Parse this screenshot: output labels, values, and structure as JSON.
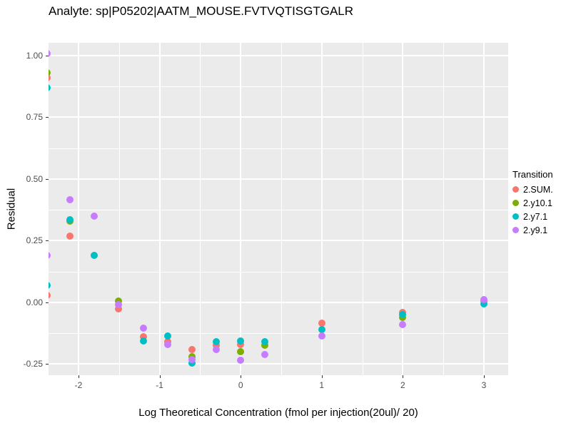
{
  "title": "Analyte: sp|P05202|AATM_MOUSE.FVTVQTISGTGALR",
  "chart_data": {
    "type": "scatter",
    "title": "Analyte: sp|P05202|AATM_MOUSE.FVTVQTISGTGALR",
    "xlabel": "Log Theoretical Concentration (fmol per injection(20ul)/ 20)",
    "ylabel": "Residual",
    "legend_title": "Transition",
    "legend_position": "right",
    "grid": "on",
    "panel_bg": "#EBEBEB",
    "grid_color": "#FFFFFF",
    "xlim": [
      -2.37,
      3.3
    ],
    "ylim": [
      -0.295,
      1.052
    ],
    "x_ticks": [
      {
        "value": -2,
        "label": "-2"
      },
      {
        "value": -1,
        "label": "-1"
      },
      {
        "value": 0,
        "label": "0"
      },
      {
        "value": 1,
        "label": "1"
      },
      {
        "value": 2,
        "label": "2"
      },
      {
        "value": 3,
        "label": "3"
      }
    ],
    "y_ticks": [
      {
        "value": 1.0,
        "label": "1.00"
      },
      {
        "value": 0.75,
        "label": "0.75"
      },
      {
        "value": 0.5,
        "label": "0.50"
      },
      {
        "value": 0.25,
        "label": "0.25"
      },
      {
        "value": 0.0,
        "label": "0.00"
      },
      {
        "value": -0.25,
        "label": "-0.25"
      }
    ],
    "x_minor_ticks": [
      -1.5,
      -0.5,
      0.5,
      1.5,
      2.5
    ],
    "y_minor_ticks": [
      0.875,
      0.625,
      0.375,
      0.125,
      -0.125
    ],
    "series": [
      {
        "name": "2.SUM.",
        "color": "#F8766D",
        "points": [
          [
            -2.39,
            0.91
          ],
          [
            -2.39,
            0.03
          ],
          [
            -2.11,
            0.27
          ],
          [
            -1.51,
            -0.025
          ],
          [
            -1.2,
            -0.14
          ],
          [
            -0.9,
            -0.16
          ],
          [
            -0.6,
            -0.19
          ],
          [
            -0.3,
            -0.175
          ],
          [
            0,
            -0.17
          ],
          [
            1,
            -0.085
          ],
          [
            2,
            -0.04
          ],
          [
            3,
            0.005
          ]
        ]
      },
      {
        "name": "2.y10.1",
        "color": "#7CAE00",
        "points": [
          [
            -2.39,
            0.93
          ],
          [
            -2.11,
            0.33
          ],
          [
            -1.51,
            0.005
          ],
          [
            -0.6,
            -0.22
          ],
          [
            0,
            -0.2
          ],
          [
            0.3,
            -0.175
          ],
          [
            2,
            -0.06
          ]
        ]
      },
      {
        "name": "2.y7.1",
        "color": "#00BFC4",
        "points": [
          [
            -2.39,
            0.87
          ],
          [
            -2.39,
            0.07
          ],
          [
            -2.11,
            0.335
          ],
          [
            -1.81,
            0.19
          ],
          [
            -1.2,
            -0.155
          ],
          [
            -0.9,
            -0.135
          ],
          [
            -0.6,
            -0.245
          ],
          [
            -0.3,
            -0.16
          ],
          [
            0,
            -0.155
          ],
          [
            0.3,
            -0.16
          ],
          [
            1,
            -0.11
          ],
          [
            2,
            -0.05
          ],
          [
            3,
            -0.005
          ]
        ]
      },
      {
        "name": "2.y9.1",
        "color": "#C77CFF",
        "points": [
          [
            -2.39,
            1.01
          ],
          [
            -2.39,
            0.19
          ],
          [
            -2.11,
            0.415
          ],
          [
            -1.81,
            0.35
          ],
          [
            -1.51,
            -0.01
          ],
          [
            -1.2,
            -0.105
          ],
          [
            -0.9,
            -0.17
          ],
          [
            -0.6,
            -0.23
          ],
          [
            -0.3,
            -0.19
          ],
          [
            0,
            -0.235
          ],
          [
            0.3,
            -0.21
          ],
          [
            1,
            -0.135
          ],
          [
            2,
            -0.09
          ],
          [
            3,
            0.01
          ]
        ]
      }
    ]
  }
}
